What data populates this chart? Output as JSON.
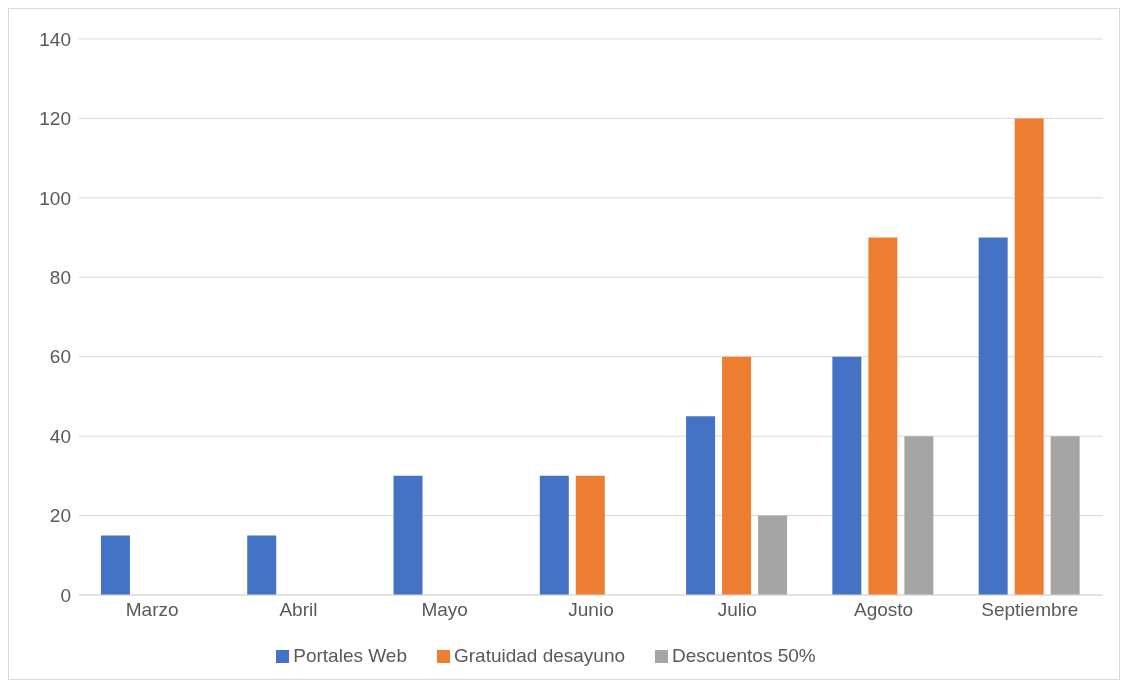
{
  "chart_data": {
    "type": "bar",
    "categories": [
      "Marzo",
      "Abril",
      "Mayo",
      "Junio",
      "Julio",
      "Agosto",
      "Septiembre"
    ],
    "series": [
      {
        "name": "Portales Web",
        "color": "#4472c4",
        "values": [
          15,
          15,
          30,
          30,
          45,
          60,
          90
        ]
      },
      {
        "name": "Gratuidad desayuno",
        "color": "#ed7d31",
        "values": [
          0,
          0,
          0,
          30,
          60,
          90,
          120
        ]
      },
      {
        "name": "Descuentos 50%",
        "color": "#a5a5a5",
        "values": [
          0,
          0,
          0,
          0,
          20,
          40,
          40
        ]
      }
    ],
    "ylim": [
      0,
      140
    ],
    "yticks": [
      0,
      20,
      40,
      60,
      80,
      100,
      120,
      140
    ],
    "grid": "y",
    "legend": "bottom"
  }
}
